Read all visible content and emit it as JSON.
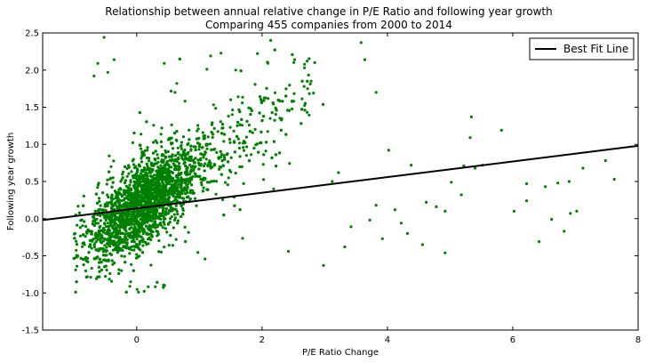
{
  "chart_data": {
    "type": "scatter",
    "title": "Relationship between annual relative change in P/E Ratio and following year growth",
    "subtitle": "Comparing 455 companies from 2000 to 2014",
    "xlabel": "P/E Ratio Change",
    "ylabel": "Following year growth",
    "xlim": [
      -1.5,
      8
    ],
    "ylim": [
      -1.5,
      2.5
    ],
    "x_ticks": [
      "0",
      "2",
      "4",
      "6",
      "8"
    ],
    "y_ticks": [
      "-1.5",
      "-1.0",
      "-0.5",
      "0.0",
      "0.5",
      "1.0",
      "1.5",
      "2.0",
      "2.5"
    ],
    "grid": false,
    "legend": {
      "position": "top-right",
      "entries": [
        "Best Fit Line"
      ]
    },
    "colors": {
      "points": "#008000",
      "line": "#000000"
    },
    "best_fit_line": {
      "name": "Best Fit Line",
      "x": [
        -1.5,
        8
      ],
      "y": [
        -0.02,
        0.98
      ]
    },
    "points_outliers": [
      [
        -0.52,
        2.44
      ],
      [
        -0.62,
        2.09
      ],
      [
        -0.36,
        2.14
      ],
      [
        -0.46,
        1.97
      ],
      [
        -0.68,
        1.92
      ],
      [
        0.44,
        2.09
      ],
      [
        1.18,
        2.19
      ],
      [
        1.12,
        2.01
      ],
      [
        1.58,
        2.0
      ],
      [
        2.52,
        2.14
      ],
      [
        2.72,
        2.12
      ],
      [
        2.84,
        2.1
      ],
      [
        3.58,
        2.37
      ],
      [
        3.64,
        2.14
      ],
      [
        3.82,
        1.7
      ],
      [
        2.82,
        1.69
      ],
      [
        0.64,
        1.82
      ],
      [
        1.5,
        1.6
      ],
      [
        1.62,
        1.64
      ],
      [
        2.72,
        1.43
      ],
      [
        5.34,
        1.37
      ],
      [
        5.82,
        1.19
      ],
      [
        5.32,
        1.09
      ],
      [
        4.02,
        0.92
      ],
      [
        7.48,
        0.78
      ],
      [
        7.12,
        0.68
      ],
      [
        6.9,
        0.5
      ],
      [
        6.22,
        0.47
      ],
      [
        6.72,
        0.48
      ],
      [
        6.52,
        0.43
      ],
      [
        7.62,
        0.53
      ],
      [
        7.02,
        0.1
      ],
      [
        6.92,
        0.07
      ],
      [
        6.62,
        -0.01
      ],
      [
        6.82,
        -0.17
      ],
      [
        6.42,
        -0.31
      ],
      [
        6.22,
        0.24
      ],
      [
        6.02,
        0.1
      ],
      [
        5.22,
        0.71
      ],
      [
        5.52,
        0.72
      ],
      [
        5.4,
        0.68
      ],
      [
        5.02,
        0.49
      ],
      [
        5.18,
        0.32
      ],
      [
        4.92,
        0.1
      ],
      [
        4.78,
        0.16
      ],
      [
        4.56,
        -0.35
      ],
      [
        4.92,
        -0.46
      ],
      [
        4.22,
        -0.06
      ],
      [
        4.32,
        -0.2
      ],
      [
        4.62,
        0.22
      ],
      [
        4.12,
        0.12
      ],
      [
        3.92,
        -0.27
      ],
      [
        3.42,
        -0.11
      ],
      [
        3.32,
        -0.38
      ],
      [
        2.98,
        -0.63
      ],
      [
        3.82,
        0.18
      ],
      [
        3.72,
        -0.02
      ],
      [
        3.12,
        0.5
      ],
      [
        2.42,
        -0.44
      ],
      [
        2.02,
        0.73
      ],
      [
        3.22,
        0.62
      ],
      [
        4.38,
        0.72
      ]
    ],
    "cluster": {
      "center": [
        0.0,
        0.15
      ],
      "correlation": 0.55,
      "approx_points": 3000
    }
  }
}
